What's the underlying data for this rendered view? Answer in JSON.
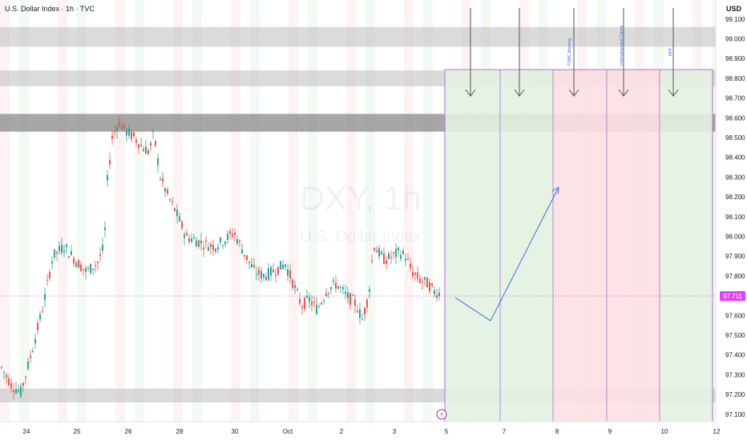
{
  "header": {
    "symbol_title": "U.S. Dollar Index · 1h · TVC",
    "currency": "USD"
  },
  "chart_data": {
    "type": "candlestick",
    "watermark_symbol": "DXY, 1h",
    "watermark_name": "U.S. Dollar Index",
    "x_tick_labels": [
      "24",
      "25",
      "26",
      "28",
      "30",
      "Oct",
      "2",
      "3",
      "5",
      "7",
      "8",
      "9",
      "10",
      "12"
    ],
    "y_tick_labels": [
      "97.100",
      "97.200",
      "97.300",
      "97.400",
      "97.500",
      "97.600",
      "97.700",
      "97.800",
      "97.900",
      "98.000",
      "98.100",
      "98.200",
      "98.300",
      "98.400",
      "98.500",
      "98.600",
      "98.700",
      "98.800",
      "98.900",
      "99.000",
      "99.100"
    ],
    "ylim": [
      97.1,
      99.1
    ],
    "last_price": "97.711",
    "price_path": [
      [
        0,
        97.35
      ],
      [
        14,
        97.25
      ],
      [
        26,
        97.21
      ],
      [
        40,
        97.42
      ],
      [
        54,
        97.65
      ],
      [
        66,
        97.9
      ],
      [
        80,
        97.95
      ],
      [
        94,
        97.88
      ],
      [
        108,
        97.82
      ],
      [
        122,
        97.87
      ],
      [
        130,
        97.95
      ],
      [
        134,
        98.28
      ],
      [
        140,
        98.5
      ],
      [
        148,
        98.58
      ],
      [
        158,
        98.53
      ],
      [
        168,
        98.5
      ],
      [
        178,
        98.45
      ],
      [
        186,
        98.43
      ],
      [
        192,
        98.52
      ],
      [
        200,
        98.3
      ],
      [
        210,
        98.2
      ],
      [
        220,
        98.12
      ],
      [
        232,
        98.0
      ],
      [
        244,
        97.98
      ],
      [
        256,
        97.96
      ],
      [
        268,
        97.95
      ],
      [
        280,
        97.98
      ],
      [
        292,
        98.02
      ],
      [
        304,
        97.92
      ],
      [
        318,
        97.82
      ],
      [
        330,
        97.8
      ],
      [
        344,
        97.83
      ],
      [
        356,
        97.86
      ],
      [
        366,
        97.76
      ],
      [
        376,
        97.65
      ],
      [
        386,
        97.68
      ],
      [
        396,
        97.63
      ],
      [
        408,
        97.73
      ],
      [
        420,
        97.76
      ],
      [
        432,
        97.7
      ],
      [
        444,
        97.66
      ],
      [
        452,
        97.58
      ],
      [
        460,
        97.7
      ],
      [
        466,
        97.96
      ],
      [
        472,
        97.92
      ],
      [
        480,
        97.88
      ],
      [
        490,
        97.9
      ],
      [
        498,
        97.92
      ],
      [
        506,
        97.9
      ],
      [
        514,
        97.82
      ],
      [
        524,
        97.78
      ],
      [
        534,
        97.76
      ],
      [
        542,
        97.72
      ],
      [
        550,
        97.711
      ]
    ],
    "zones": [
      {
        "low": 98.96,
        "high": 99.06,
        "shade": "light"
      },
      {
        "low": 98.76,
        "high": 98.84,
        "shade": "light"
      },
      {
        "low": 98.53,
        "high": 98.62,
        "shade": "dark"
      },
      {
        "low": 97.16,
        "high": 97.23,
        "shade": "light"
      }
    ],
    "event_labels": [
      "FOMC Meeting",
      "Unemployment Claims",
      "NFP"
    ],
    "colors": {
      "up": "#26a69a",
      "down": "#ef5350",
      "green_box": "#e3f2e1",
      "red_box": "#fde0e2",
      "box_border": "#b36bd6",
      "last_price": "#e040fb",
      "projection": "#3f6ae0"
    }
  }
}
